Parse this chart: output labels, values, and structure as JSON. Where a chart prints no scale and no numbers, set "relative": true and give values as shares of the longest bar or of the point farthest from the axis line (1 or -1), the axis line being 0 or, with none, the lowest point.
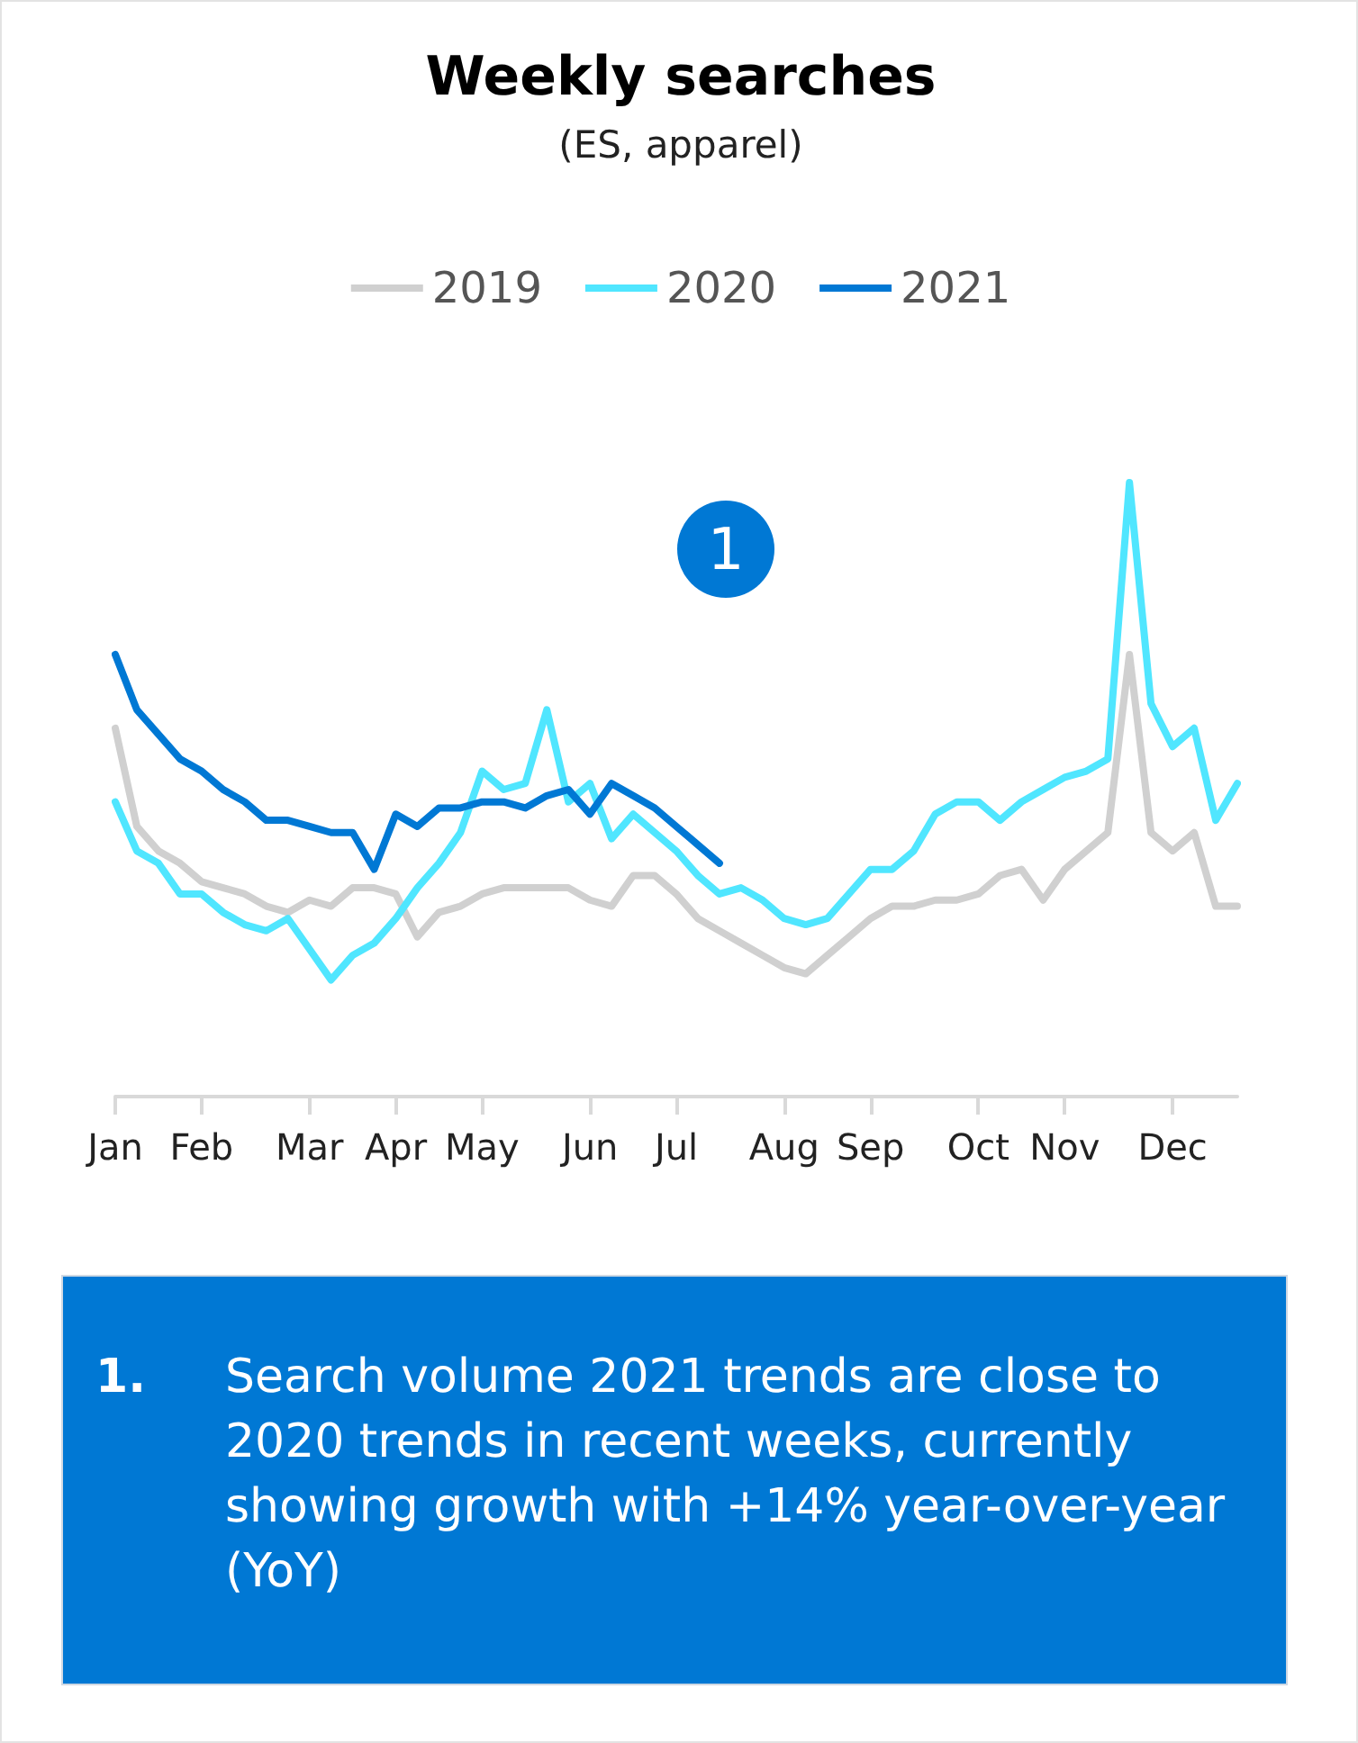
{
  "chart_data": {
    "type": "line",
    "title": "Weekly searches",
    "subtitle": "(ES, apparel)",
    "relative": true,
    "legend": "top",
    "grid": false,
    "marker": "none",
    "line_style": "solid",
    "categories": [
      "Jan",
      null,
      null,
      null,
      "Feb",
      null,
      null,
      null,
      null,
      "Mar",
      null,
      null,
      null,
      "Apr",
      null,
      null,
      null,
      "May",
      null,
      null,
      null,
      null,
      "Jun",
      null,
      null,
      null,
      "Jul",
      null,
      null,
      null,
      null,
      "Aug",
      null,
      null,
      null,
      "Sep",
      null,
      null,
      null,
      null,
      "Oct",
      null,
      null,
      null,
      "Nov",
      null,
      null,
      null,
      null,
      "Dec",
      null,
      null,
      null
    ],
    "series": [
      {
        "name": "2019",
        "color": "#d0d0d0",
        "values": [
          0.6,
          0.44,
          0.4,
          0.38,
          0.35,
          0.34,
          0.33,
          0.31,
          0.3,
          0.32,
          0.31,
          0.34,
          0.34,
          0.33,
          0.26,
          0.3,
          0.31,
          0.33,
          0.34,
          0.34,
          0.34,
          0.34,
          0.32,
          0.31,
          0.36,
          0.36,
          0.33,
          0.29,
          0.27,
          0.25,
          0.23,
          0.21,
          0.2,
          0.23,
          0.26,
          0.29,
          0.31,
          0.31,
          0.32,
          0.32,
          0.33,
          0.36,
          0.37,
          0.32,
          0.37,
          0.4,
          0.43,
          0.72,
          0.43,
          0.4,
          0.43,
          0.31,
          0.31
        ]
      },
      {
        "name": "2020",
        "color": "#50e6ff",
        "values": [
          0.48,
          0.4,
          0.38,
          0.33,
          0.33,
          0.3,
          0.28,
          0.27,
          0.29,
          0.24,
          0.19,
          0.23,
          0.25,
          0.29,
          0.34,
          0.38,
          0.43,
          0.53,
          0.5,
          0.51,
          0.63,
          0.48,
          0.51,
          0.42,
          0.46,
          0.43,
          0.4,
          0.36,
          0.33,
          0.34,
          0.32,
          0.29,
          0.28,
          0.29,
          0.33,
          0.37,
          0.37,
          0.4,
          0.46,
          0.48,
          0.48,
          0.45,
          0.48,
          0.5,
          0.52,
          0.53,
          0.55,
          1.0,
          0.64,
          0.57,
          0.6,
          0.45,
          0.51
        ]
      },
      {
        "name": "2021",
        "color": "#0078d4",
        "values": [
          0.72,
          0.63,
          0.59,
          0.55,
          0.53,
          0.5,
          0.48,
          0.45,
          0.45,
          0.44,
          0.43,
          0.43,
          0.37,
          0.46,
          0.44,
          0.47,
          0.47,
          0.48,
          0.48,
          0.47,
          0.49,
          0.5,
          0.46,
          0.51,
          0.49,
          0.47,
          0.44,
          0.41,
          0.38,
          null,
          null,
          null,
          null,
          null,
          null,
          null,
          null,
          null,
          null,
          null,
          null,
          null,
          null,
          null,
          null,
          null,
          null,
          null,
          null,
          null,
          null,
          null,
          null
        ]
      }
    ],
    "annotations": [
      "1",
      "1.",
      "Search volume 2021 trends are close to 2020 trends in recent weeks, currently showing growth with +14% year-over-year (YoY)"
    ]
  }
}
